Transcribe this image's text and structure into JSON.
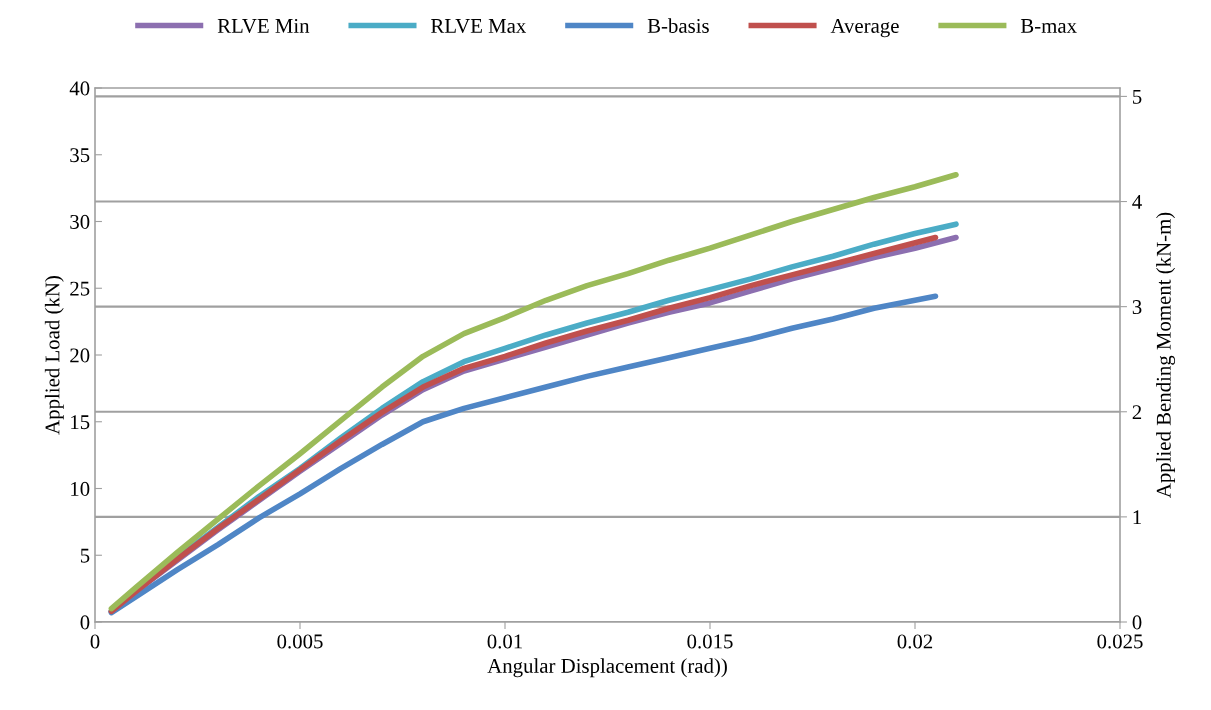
{
  "chart_data": {
    "type": "line",
    "xlabel": "Angular Displacement (rad))",
    "ylabel": "Applied Load (kN)",
    "y2label": "Applied Bending Moment (kN-m)",
    "xlim": [
      0,
      0.025
    ],
    "xticks": [
      0,
      0.005,
      0.01,
      0.015,
      0.02,
      0.025
    ],
    "ylim": [
      0,
      40
    ],
    "yticks": [
      0,
      5,
      10,
      15,
      20,
      25,
      30,
      35,
      40
    ],
    "y2lim": [
      0,
      5.08
    ],
    "y2ticks": [
      0,
      1,
      2,
      3,
      4,
      5
    ],
    "grid": "y",
    "legend": "top",
    "series": [
      {
        "name": "RLVE Min",
        "color": "#8c6fb0",
        "x": [
          0.0004,
          0.001,
          0.002,
          0.003,
          0.004,
          0.005,
          0.006,
          0.007,
          0.008,
          0.009,
          0.01,
          0.011,
          0.012,
          0.013,
          0.014,
          0.015,
          0.016,
          0.017,
          0.018,
          0.019,
          0.02,
          0.021
        ],
        "values": [
          0.8,
          2.3,
          4.6,
          6.9,
          9.1,
          11.3,
          13.4,
          15.5,
          17.4,
          18.8,
          19.7,
          20.6,
          21.5,
          22.4,
          23.2,
          23.9,
          24.8,
          25.7,
          26.5,
          27.3,
          28.0,
          28.8
        ]
      },
      {
        "name": "RLVE Max",
        "color": "#4bacc6",
        "x": [
          0.0004,
          0.001,
          0.002,
          0.003,
          0.004,
          0.005,
          0.006,
          0.007,
          0.008,
          0.009,
          0.01,
          0.011,
          0.012,
          0.013,
          0.014,
          0.015,
          0.016,
          0.017,
          0.018,
          0.019,
          0.02,
          0.021
        ],
        "values": [
          0.8,
          2.4,
          4.8,
          7.1,
          9.4,
          11.5,
          13.8,
          16.0,
          18.0,
          19.5,
          20.5,
          21.5,
          22.4,
          23.2,
          24.1,
          24.9,
          25.7,
          26.6,
          27.4,
          28.3,
          29.1,
          29.8
        ]
      },
      {
        "name": "B-basis",
        "color": "#4f86c6",
        "x": [
          0.0004,
          0.001,
          0.002,
          0.003,
          0.004,
          0.005,
          0.006,
          0.007,
          0.008,
          0.009,
          0.01,
          0.011,
          0.012,
          0.013,
          0.014,
          0.015,
          0.016,
          0.017,
          0.018,
          0.019,
          0.0205
        ],
        "values": [
          0.7,
          1.9,
          3.9,
          5.8,
          7.8,
          9.6,
          11.5,
          13.3,
          15.0,
          16.0,
          16.8,
          17.6,
          18.4,
          19.1,
          19.8,
          20.5,
          21.2,
          22.0,
          22.7,
          23.5,
          24.4
        ]
      },
      {
        "name": "Average",
        "color": "#c0504d",
        "x": [
          0.0004,
          0.001,
          0.002,
          0.003,
          0.004,
          0.005,
          0.006,
          0.007,
          0.008,
          0.009,
          0.01,
          0.011,
          0.012,
          0.013,
          0.014,
          0.015,
          0.016,
          0.017,
          0.018,
          0.019,
          0.0205
        ],
        "values": [
          0.8,
          2.3,
          4.7,
          7.0,
          9.2,
          11.4,
          13.6,
          15.7,
          17.6,
          19.0,
          19.9,
          20.9,
          21.8,
          22.6,
          23.5,
          24.3,
          25.2,
          26.0,
          26.8,
          27.6,
          28.8
        ]
      },
      {
        "name": "B-max",
        "color": "#9bbb59",
        "x": [
          0.0004,
          0.001,
          0.002,
          0.003,
          0.004,
          0.005,
          0.006,
          0.007,
          0.008,
          0.009,
          0.01,
          0.011,
          0.012,
          0.013,
          0.014,
          0.015,
          0.016,
          0.017,
          0.018,
          0.019,
          0.02,
          0.021
        ],
        "values": [
          1.0,
          2.6,
          5.2,
          7.7,
          10.2,
          12.6,
          15.1,
          17.6,
          19.9,
          21.6,
          22.8,
          24.1,
          25.2,
          26.1,
          27.1,
          28.0,
          29.0,
          30.0,
          30.9,
          31.8,
          32.6,
          33.5
        ]
      }
    ]
  }
}
